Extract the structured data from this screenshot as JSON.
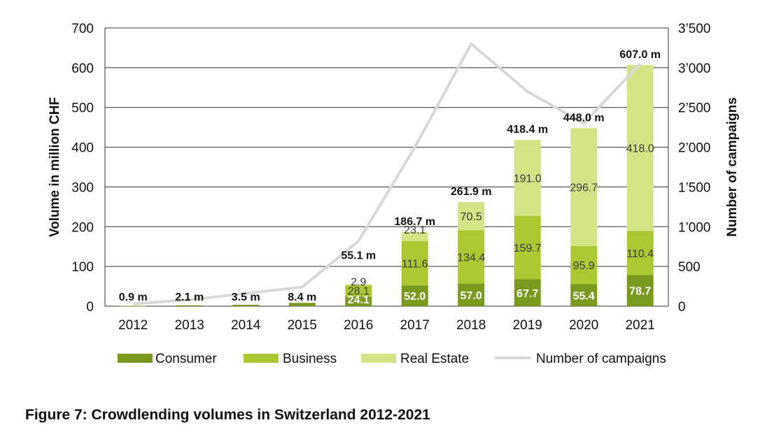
{
  "caption": "Figure 7: Crowdlending volumes in Switzerland 2012-2021",
  "colors": {
    "consumer": "#7a9a1e",
    "business": "#aac832",
    "real_estate": "#d3e486",
    "campaigns": "#d8d8d8",
    "grid": "#333333"
  },
  "chart_data": {
    "type": "bar",
    "stacked": true,
    "categories": [
      "2012",
      "2013",
      "2014",
      "2015",
      "2016",
      "2017",
      "2018",
      "2019",
      "2020",
      "2021"
    ],
    "series": [
      {
        "name": "Consumer",
        "key": "consumer",
        "values": [
          0.9,
          2.1,
          3.5,
          8.4,
          24.1,
          52.0,
          57.0,
          67.7,
          55.4,
          78.7
        ],
        "labels": [
          "",
          "",
          "",
          "",
          "24.1",
          "52.0",
          "57.0",
          "67.7",
          "55.4",
          "78.7"
        ]
      },
      {
        "name": "Business",
        "key": "business",
        "values": [
          0,
          0,
          0,
          0,
          28.1,
          111.6,
          134.4,
          159.7,
          95.9,
          110.4
        ],
        "labels": [
          "",
          "",
          "",
          "",
          "28.1",
          "111.6",
          "134.4",
          "159.7",
          "95.9",
          "110.4"
        ]
      },
      {
        "name": "Real Estate",
        "key": "real_estate",
        "values": [
          0,
          0,
          0,
          0,
          2.9,
          23.1,
          70.5,
          191.0,
          296.7,
          418.0
        ],
        "labels": [
          "",
          "",
          "",
          "",
          "2.9",
          "23.1",
          "70.5",
          "191.0",
          "296.7",
          "418.0"
        ]
      }
    ],
    "totals": [
      "0.9 m",
      "2.1 m",
      "3.5 m",
      "8.4 m",
      "55.1 m",
      "186.7 m",
      "261.9 m",
      "418.4 m",
      "448.0 m",
      "607.0 m"
    ],
    "line_series": {
      "name": "Number of campaigns",
      "axis": "right",
      "values": [
        30,
        80,
        160,
        240,
        820,
        2000,
        3300,
        2700,
        2300,
        3050
      ]
    },
    "ylabel": "Volume in million CHF",
    "ylabel_right": "Number of campaigns",
    "ylim": [
      0,
      700
    ],
    "y_ticks": [
      0,
      100,
      200,
      300,
      400,
      500,
      600,
      700
    ],
    "y_tick_labels": [
      "0",
      "100",
      "200",
      "300",
      "400",
      "500",
      "600",
      "700"
    ],
    "ylim_right": [
      0,
      3500
    ],
    "y2_ticks": [
      0,
      500,
      1000,
      1500,
      2000,
      2500,
      3000,
      3500
    ],
    "y2_tick_labels": [
      "0",
      "500",
      "1’000",
      "1’500",
      "2’000",
      "2’500",
      "3’000",
      "3’500"
    ],
    "grid": true,
    "legend": [
      "Consumer",
      "Business",
      "Real Estate",
      "Number of campaigns"
    ],
    "legend_position": "bottom"
  }
}
